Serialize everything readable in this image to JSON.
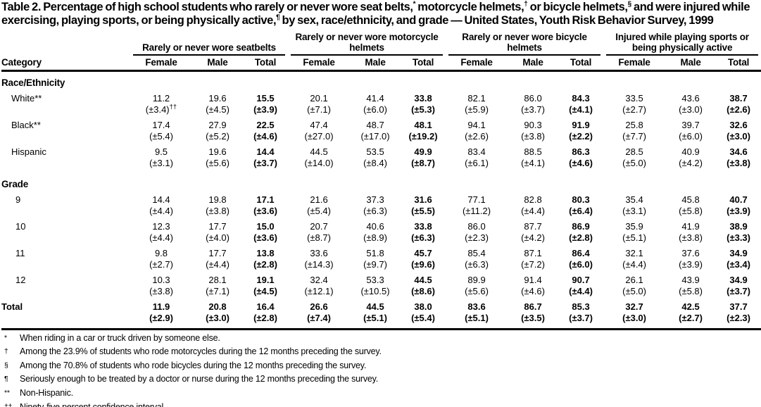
{
  "title": {
    "segments": [
      {
        "text": "Table 2. Percentage of high school students who rarely or never wore seat belts,"
      },
      {
        "sup": "*"
      },
      {
        "text": " motorcycle helmets,"
      },
      {
        "sup": "†"
      },
      {
        "text": " or bicycle helmets,"
      },
      {
        "sup": "§"
      },
      {
        "text": " and were injured while exercising, playing sports, or being physically active,"
      },
      {
        "sup": "¶"
      },
      {
        "text": " by sex, race/ethnicity, and grade — United States, Youth Risk Behavior Survey, 1999"
      }
    ]
  },
  "table": {
    "category_header": "Category",
    "groups": [
      {
        "title": "Rarely or never wore seatbelts",
        "columns": [
          "Female",
          "Male",
          "Total"
        ]
      },
      {
        "title": "Rarely or never wore motorcycle helmets",
        "columns": [
          "Female",
          "Male",
          "Total"
        ]
      },
      {
        "title": "Rarely or never wore bicycle helmets",
        "columns": [
          "Female",
          "Male",
          "Total"
        ]
      },
      {
        "title": "Injured while playing sports or being physically active",
        "columns": [
          "Female",
          "Male",
          "Total"
        ]
      }
    ],
    "sections": [
      {
        "label": "Race/Ethnicity",
        "rows": [
          {
            "label": "White**",
            "cells": [
              {
                "v": "11.2",
                "ci": "(±3.4)",
                "sup": "††"
              },
              {
                "v": "19.6",
                "ci": "(±4.5)"
              },
              {
                "v": "15.5",
                "ci": "(±3.9)"
              },
              {
                "v": "20.1",
                "ci": "(±7.1)"
              },
              {
                "v": "41.4",
                "ci": "(±6.0)"
              },
              {
                "v": "33.8",
                "ci": "(±5.3)"
              },
              {
                "v": "82.1",
                "ci": "(±5.9)"
              },
              {
                "v": "86.0",
                "ci": "(±3.7)"
              },
              {
                "v": "84.3",
                "ci": "(±4.1)"
              },
              {
                "v": "33.5",
                "ci": "(±2.7)"
              },
              {
                "v": "43.6",
                "ci": "(±3.0)"
              },
              {
                "v": "38.7",
                "ci": "(±2.6)"
              }
            ]
          },
          {
            "label": "Black**",
            "cells": [
              {
                "v": "17.4",
                "ci": "(±5.4)"
              },
              {
                "v": "27.9",
                "ci": "(±5.2)"
              },
              {
                "v": "22.5",
                "ci": "(±4.6)"
              },
              {
                "v": "47.4",
                "ci": "(±27.0)"
              },
              {
                "v": "48.7",
                "ci": "(±17.0)"
              },
              {
                "v": "48.1",
                "ci": "(±19.2)"
              },
              {
                "v": "94.1",
                "ci": "(±2.6)"
              },
              {
                "v": "90.3",
                "ci": "(±3.8)"
              },
              {
                "v": "91.9",
                "ci": "(±2.2)"
              },
              {
                "v": "25.8",
                "ci": "(±7.7)"
              },
              {
                "v": "39.7",
                "ci": "(±6.0)"
              },
              {
                "v": "32.6",
                "ci": "(±3.0)"
              }
            ]
          },
          {
            "label": "Hispanic",
            "cells": [
              {
                "v": "9.5",
                "ci": "(±3.1)"
              },
              {
                "v": "19.6",
                "ci": "(±5.6)"
              },
              {
                "v": "14.4",
                "ci": "(±3.7)"
              },
              {
                "v": "44.5",
                "ci": "(±14.0)"
              },
              {
                "v": "53.5",
                "ci": "(±8.4)"
              },
              {
                "v": "49.9",
                "ci": "(±8.7)"
              },
              {
                "v": "83.4",
                "ci": "(±6.1)"
              },
              {
                "v": "88.5",
                "ci": "(±4.1)"
              },
              {
                "v": "86.3",
                "ci": "(±4.6)"
              },
              {
                "v": "28.5",
                "ci": "(±5.0)"
              },
              {
                "v": "40.9",
                "ci": "(±4.2)"
              },
              {
                "v": "34.6",
                "ci": "(±3.8)"
              }
            ]
          }
        ]
      },
      {
        "label": "Grade",
        "rows": [
          {
            "label": "9",
            "cells": [
              {
                "v": "14.4",
                "ci": "(±4.4)"
              },
              {
                "v": "19.8",
                "ci": "(±3.8)"
              },
              {
                "v": "17.1",
                "ci": "(±3.6)"
              },
              {
                "v": "21.6",
                "ci": "(±5.4)"
              },
              {
                "v": "37.3",
                "ci": "(±6.3)"
              },
              {
                "v": "31.6",
                "ci": "(±5.5)"
              },
              {
                "v": "77.1",
                "ci": "(±11.2)"
              },
              {
                "v": "82.8",
                "ci": "(±4.4)"
              },
              {
                "v": "80.3",
                "ci": "(±6.4)"
              },
              {
                "v": "35.4",
                "ci": "(±3.1)"
              },
              {
                "v": "45.8",
                "ci": "(±5.8)"
              },
              {
                "v": "40.7",
                "ci": "(±3.9)"
              }
            ]
          },
          {
            "label": "10",
            "cells": [
              {
                "v": "12.3",
                "ci": "(±4.4)"
              },
              {
                "v": "17.7",
                "ci": "(±4.0)"
              },
              {
                "v": "15.0",
                "ci": "(±3.6)"
              },
              {
                "v": "20.7",
                "ci": "(±8.7)"
              },
              {
                "v": "40.6",
                "ci": "(±8.9)"
              },
              {
                "v": "33.8",
                "ci": "(±6.3)"
              },
              {
                "v": "86.0",
                "ci": "(±2.3)"
              },
              {
                "v": "87.7",
                "ci": "(±4.2)"
              },
              {
                "v": "86.9",
                "ci": "(±2.8)"
              },
              {
                "v": "35.9",
                "ci": "(±5.1)"
              },
              {
                "v": "41.9",
                "ci": "(±3.8)"
              },
              {
                "v": "38.9",
                "ci": "(±3.3)"
              }
            ]
          },
          {
            "label": "11",
            "cells": [
              {
                "v": "9.8",
                "ci": "(±2.7)"
              },
              {
                "v": "17.7",
                "ci": "(±4.4)"
              },
              {
                "v": "13.8",
                "ci": "(±2.8)"
              },
              {
                "v": "33.6",
                "ci": "(±14.3)"
              },
              {
                "v": "51.8",
                "ci": "(±9.7)"
              },
              {
                "v": "45.7",
                "ci": "(±9.6)"
              },
              {
                "v": "85.4",
                "ci": "(±6.3)"
              },
              {
                "v": "87.1",
                "ci": "(±7.2)"
              },
              {
                "v": "86.4",
                "ci": "(±6.0)"
              },
              {
                "v": "32.1",
                "ci": "(±4.4)"
              },
              {
                "v": "37.6",
                "ci": "(±3.9)"
              },
              {
                "v": "34.9",
                "ci": "(±3.4)"
              }
            ]
          },
          {
            "label": "12",
            "cells": [
              {
                "v": "10.3",
                "ci": "(±3.8)"
              },
              {
                "v": "28.1",
                "ci": "(±7.1)"
              },
              {
                "v": "19.1",
                "ci": "(±4.5)"
              },
              {
                "v": "32.4",
                "ci": "(±12.1)"
              },
              {
                "v": "53.3",
                "ci": "(±10.5)"
              },
              {
                "v": "44.5",
                "ci": "(±8.6)"
              },
              {
                "v": "89.9",
                "ci": "(±5.6)"
              },
              {
                "v": "91.4",
                "ci": "(±4.6)"
              },
              {
                "v": "90.7",
                "ci": "(±4.4)"
              },
              {
                "v": "26.1",
                "ci": "(±5.0)"
              },
              {
                "v": "43.9",
                "ci": "(±5.8)"
              },
              {
                "v": "34.9",
                "ci": "(±3.7)"
              }
            ]
          }
        ]
      }
    ],
    "total_row": {
      "label": "Total",
      "bold": true,
      "cells": [
        {
          "v": "11.9",
          "ci": "(±2.9)"
        },
        {
          "v": "20.8",
          "ci": "(±3.0)"
        },
        {
          "v": "16.4",
          "ci": "(±2.8)"
        },
        {
          "v": "26.6",
          "ci": "(±7.4)"
        },
        {
          "v": "44.5",
          "ci": "(±5.1)"
        },
        {
          "v": "38.0",
          "ci": "(±5.4)"
        },
        {
          "v": "83.6",
          "ci": "(±5.1)"
        },
        {
          "v": "86.7",
          "ci": "(±3.5)"
        },
        {
          "v": "85.3",
          "ci": "(±3.7)"
        },
        {
          "v": "32.7",
          "ci": "(±3.0)"
        },
        {
          "v": "42.5",
          "ci": "(±2.7)"
        },
        {
          "v": "37.7",
          "ci": "(±2.3)"
        }
      ]
    }
  },
  "footnotes": [
    {
      "marker": "*",
      "text": "When riding in a car or truck driven by someone else."
    },
    {
      "marker": "†",
      "text": "Among the 23.9% of students who rode motorcycles during the 12 months preceding the survey."
    },
    {
      "marker": "§",
      "text": "Among the 70.8% of students who rode bicycles during the 12 months preceding the survey."
    },
    {
      "marker": "¶",
      "text": "Seriously enough to be treated by a doctor or nurse during the 12 months preceding the survey."
    },
    {
      "marker": "**",
      "text": "Non-Hispanic."
    },
    {
      "marker": "††",
      "text": "Ninety-five percent confidence interval."
    }
  ]
}
